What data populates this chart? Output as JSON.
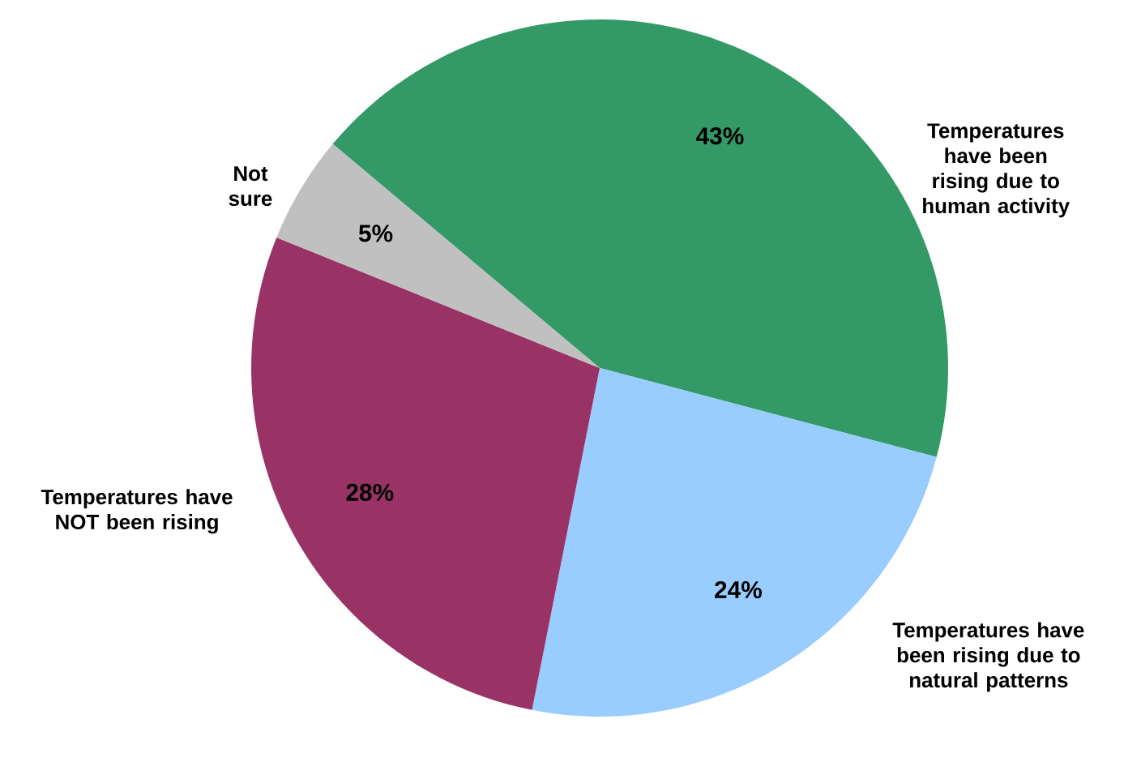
{
  "chart_data": {
    "type": "pie",
    "categories": [
      "Temperatures have been rising due to human activity",
      "Temperatures have been rising due to natural patterns",
      "Temperatures have NOT been rising",
      "Not sure"
    ],
    "values": [
      43,
      24,
      28,
      5
    ],
    "colors": [
      "#339966",
      "#99ccff",
      "#993366",
      "#c0c0c0"
    ],
    "value_labels": [
      "43%",
      "24%",
      "28%",
      "5%"
    ]
  }
}
